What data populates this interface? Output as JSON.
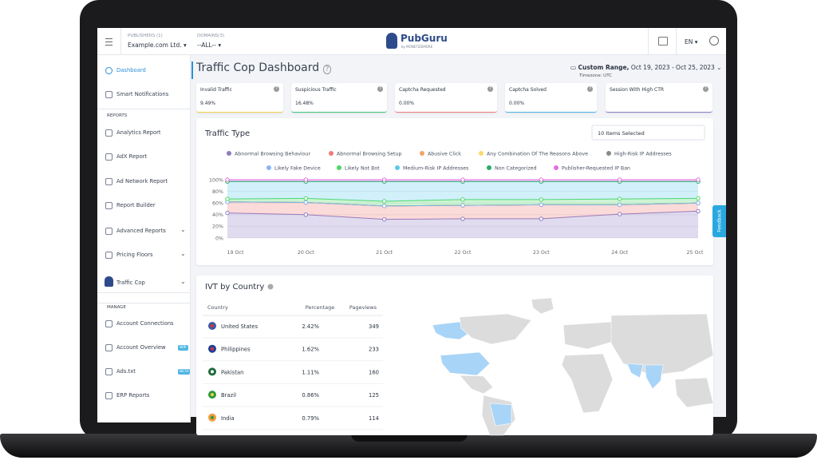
{
  "topbar": {
    "publishers_label": "PUBLISHERS (1)",
    "publisher": "Example.com Ltd.",
    "domains_label": "DOMAINS(3)",
    "domain": "--ALL--",
    "logo": "PubGuru",
    "logo_sub": "by MONETIZEMORE",
    "language": "EN"
  },
  "sidebar": {
    "main": [
      "Dashboard",
      "Smart Notifications"
    ],
    "reports_heading": "REPORTS",
    "reports": [
      "Analytics Report",
      "AdX Report",
      "Ad Network Report",
      "Report Builder",
      "Advanced Reports",
      "Pricing Floors"
    ],
    "traffic_cop": "Traffic Cop",
    "manage_heading": "MANAGE",
    "manage": [
      {
        "label": "Account Connections"
      },
      {
        "label": "Account Overview",
        "badge": "WIP"
      },
      {
        "label": "Ads.txt",
        "badge": "BETA"
      },
      {
        "label": "ERP Reports"
      }
    ]
  },
  "header": {
    "title": "Traffic Cop Dashboard",
    "range_label": "Custom Range,",
    "range": "Oct 19, 2023 - Oct 25, 2023",
    "timezone": "Timezone: UTC"
  },
  "metrics": [
    {
      "label": "Invalid Traffic",
      "value": "9.49%",
      "color": "#f5d547"
    },
    {
      "label": "Suspicious Traffic",
      "value": "16.48%",
      "color": "#3cc47c"
    },
    {
      "label": "Captcha Requested",
      "value": "0.00%",
      "color": "#f07b7b"
    },
    {
      "label": "Captcha Solved",
      "value": "0.00%",
      "color": "#4fb6e3"
    },
    {
      "label": "Session With High CTR",
      "color": "#8e7cc3"
    }
  ],
  "traffic_type": {
    "type": "stacked-area",
    "title": "Traffic Type",
    "selector": "10 Items Selected",
    "categories": [
      "19 Oct",
      "20 Oct",
      "21 Oct",
      "22 Oct",
      "23 Oct",
      "24 Oct",
      "25 Oct"
    ],
    "series": [
      {
        "name": "Abnormal Browsing Behaviour",
        "color": "#8e7cc3",
        "values": [
          43,
          40,
          32,
          33,
          33,
          41,
          46
        ]
      },
      {
        "name": "Abnormal Browsing Setup",
        "color": "#f07b7b",
        "values": [
          19,
          21,
          23,
          23,
          24,
          16,
          14
        ]
      },
      {
        "name": "Abusive Click",
        "color": "#f4a460",
        "values": [
          0,
          0,
          0,
          0,
          0,
          0,
          0
        ]
      },
      {
        "name": "Any Combination Of The Reasons Above",
        "color": "#f7dc6f",
        "values": [
          0,
          0,
          0,
          0,
          0,
          0,
          0
        ]
      },
      {
        "name": "High-Risk IP Addresses",
        "color": "#8a8a8a",
        "values": [
          0,
          0,
          0,
          0,
          0,
          0,
          0
        ]
      },
      {
        "name": "Likely Fake Device",
        "color": "#8ab4f8",
        "values": [
          0,
          0,
          0,
          0,
          0,
          0,
          0
        ]
      },
      {
        "name": "Likely Not Bot",
        "color": "#4cd964",
        "values": [
          5,
          7,
          8,
          10,
          9,
          10,
          8
        ]
      },
      {
        "name": "Medium-Risk IP Addresses",
        "color": "#5bc8e8",
        "values": [
          30,
          29,
          34,
          31,
          31,
          30,
          29
        ]
      },
      {
        "name": "Non Categorized",
        "color": "#27ae60",
        "values": [
          0,
          0,
          0,
          0,
          0,
          0,
          0
        ]
      },
      {
        "name": "Publisher-Requested IP Ban",
        "color": "#e26ee0",
        "values": [
          3,
          3,
          3,
          3,
          3,
          3,
          3
        ]
      }
    ],
    "ylim": [
      0,
      100
    ],
    "yticks": [
      {
        "value": 0,
        "label": "0%"
      },
      {
        "value": 20,
        "label": "20%"
      },
      {
        "value": 40,
        "label": "40%"
      },
      {
        "value": 60,
        "label": "60%"
      },
      {
        "value": 80,
        "label": "80%"
      },
      {
        "value": 100,
        "label": "100%"
      }
    ],
    "grid": true
  },
  "ivt_by_country": {
    "title": "IVT by Country",
    "columns": [
      "Country",
      "Percentage",
      "Pageviews"
    ],
    "rows": [
      [
        "United States",
        "2.42%",
        "349"
      ],
      [
        "Philippines",
        "1.62%",
        "233"
      ],
      [
        "Pakistan",
        "1.11%",
        "160"
      ],
      [
        "Brazil",
        "0.86%",
        "125"
      ],
      [
        "India",
        "0.79%",
        "114"
      ]
    ]
  },
  "feedback": "Feedback"
}
